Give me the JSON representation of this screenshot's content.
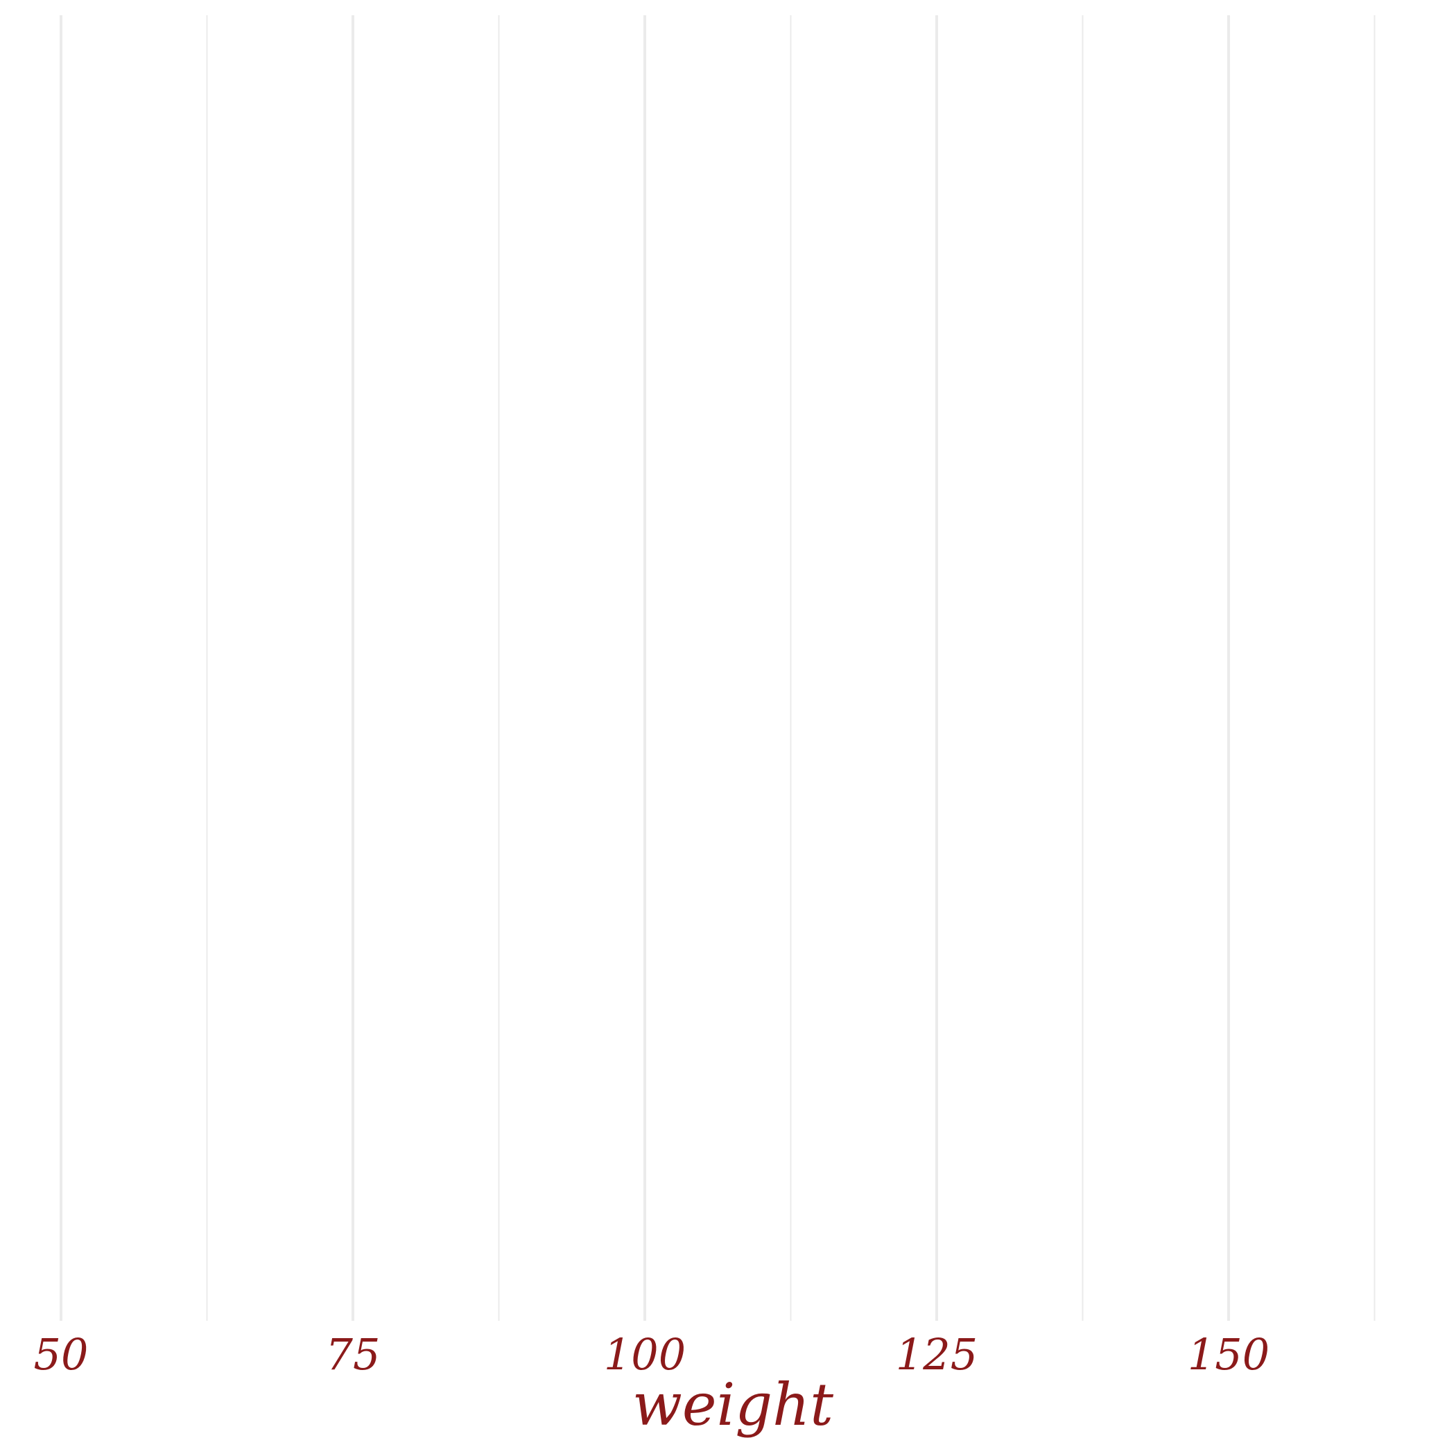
{
  "chart_data": {
    "type": "scatter",
    "title": "",
    "xlabel": "weight",
    "ylabel": "",
    "xlim": [
      50,
      165
    ],
    "x_ticks": [
      50,
      75,
      100,
      125,
      150
    ],
    "x_tick_labels": [
      "50",
      "75",
      "100",
      "125",
      "150"
    ],
    "x_minor_ticks": [
      62.5,
      87.5,
      112.5,
      137.5,
      162.5
    ],
    "series": [],
    "grid": {
      "major_x": true,
      "minor_x": true,
      "y": false
    },
    "legend": "none",
    "colors": {
      "text": "#8b1a1a",
      "grid": "#ebebeb",
      "background": "#ffffff"
    }
  }
}
